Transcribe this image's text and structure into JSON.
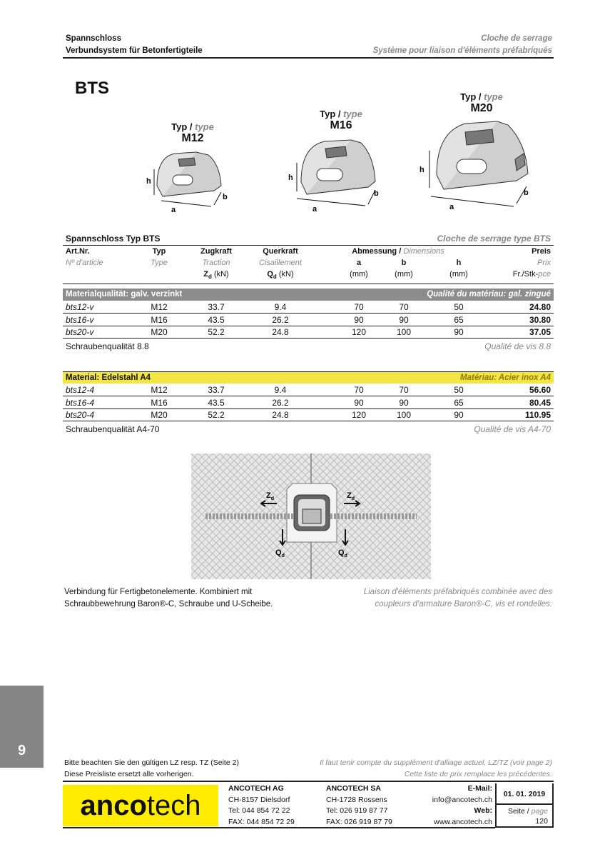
{
  "header": {
    "title_de": "Spannschloss",
    "subtitle_de": "Verbundsystem für Betonfertigteile",
    "title_fr": "Cloche de serrage",
    "subtitle_fr": "Système pour liaison d'éléments préfabriqués"
  },
  "product_title": "BTS",
  "products": [
    {
      "typ": "Typ /",
      "type": "type",
      "model": "M12",
      "dim_labels": [
        "h",
        "b",
        "a"
      ]
    },
    {
      "typ": "Typ /",
      "type": "type",
      "model": "M16",
      "dim_labels": [
        "h",
        "b",
        "a"
      ]
    },
    {
      "typ": "Typ /",
      "type": "type",
      "model": "M20",
      "dim_labels": [
        "h",
        "b",
        "a"
      ]
    }
  ],
  "table": {
    "title_de": "Spannschloss Typ BTS",
    "title_fr": "Cloche de serrage type BTS",
    "head_de": [
      "Art.Nr.",
      "Typ",
      "Zugkraft",
      "Querkraft",
      "Abmessung /",
      "Preis"
    ],
    "head_dim_fr": "Dimensions",
    "head_fr": [
      "Nº d'article",
      "Type",
      "Traction",
      "Cisaillement",
      "a",
      "b",
      "h",
      "Prix"
    ],
    "units": {
      "zd": "Z",
      "zd_sub": "d",
      "zd_unit": " (kN)",
      "qd": "Q",
      "qd_sub": "d",
      "qd_unit": " (kN)",
      "a": "(mm)",
      "b": "(mm)",
      "h": "(mm)",
      "price_de": "Fr./Stk-",
      "price_fr": "pce"
    },
    "groups": [
      {
        "label_de": "Materialqualität: galv. verzinkt",
        "label_fr": "Qualité du matériau:  gal. zingué",
        "color": "#8c8c8c",
        "rows": [
          [
            "bts12-v",
            "M12",
            "33.7",
            "9.4",
            "70",
            "70",
            "50",
            "24.80"
          ],
          [
            "bts16-v",
            "M16",
            "43.5",
            "26.2",
            "90",
            "90",
            "65",
            "30.80"
          ],
          [
            "bts20-v",
            "M20",
            "52.2",
            "24.8",
            "120",
            "100",
            "90",
            "37.05"
          ]
        ],
        "note_de": "Schraubenqualität 8.8",
        "note_fr": "Qualité de vis 8.8"
      },
      {
        "label_de": "Material: Edelstahl A4",
        "label_fr": "Matériau: Acier inox A4",
        "color": "#f3e544",
        "rows": [
          [
            "bts12-4",
            "M12",
            "33.7",
            "9.4",
            "70",
            "70",
            "50",
            "56.60"
          ],
          [
            "bts16-4",
            "M16",
            "43.5",
            "26.2",
            "90",
            "90",
            "65",
            "80.45"
          ],
          [
            "bts20-4",
            "M20",
            "52.2",
            "24.8",
            "120",
            "100",
            "90",
            "110.95"
          ]
        ],
        "note_de": "Schraubenqualität A4-70",
        "note_fr": "Qualité de vis A4-70"
      }
    ]
  },
  "diagram": {
    "z_left": "Z",
    "z_right": "Z",
    "q_left": "Q",
    "q_right": "Q",
    "sub": "d"
  },
  "caption": {
    "de_1": "Verbindung für Fertigbetonelemente. Kombiniert mit",
    "de_2": "Schraubbewehrung Baron®-C, Schraube und U-Scheibe.",
    "fr_1": "Liaison d'éléments préfabriqués combinée avec des",
    "fr_2": "coupleurs d'armature Baron®-C, vis et rondelles."
  },
  "side_tab": "9",
  "footer": {
    "note_de_1": "Bitte beachten Sie den gültigen LZ resp. TZ (Seite 2)",
    "note_de_2": "Diese Preisliste ersetzt alle vorherigen.",
    "note_fr_1": "Il faut tenir compte du supplément d'alliage actuel, LZ/TZ (voir page 2)",
    "note_fr_2": "Cette liste de prix remplace les précédentes.",
    "logo_bold": "anco",
    "logo_light": "tech",
    "logo_color": "#ffec00",
    "ag": {
      "name": "ANCOTECH AG",
      "city": "CH-8157  Dielsdorf",
      "tel": "Tel:   044 854 72 22",
      "fax": "FAX: 044 854 72 29"
    },
    "sa": {
      "name": "ANCOTECH SA",
      "city": "CH-1728 Rossens",
      "tel": "Tel:   026 919 87 77",
      "fax": "FAX: 026 919 87 79"
    },
    "email_label": "E-Mail:",
    "email": "info@ancotech.ch",
    "web_label": "Web:",
    "web": "www.ancotech.ch",
    "date": "01. 01. 2019",
    "page_de": "Seite /",
    "page_fr": "page",
    "page_no": "120"
  }
}
